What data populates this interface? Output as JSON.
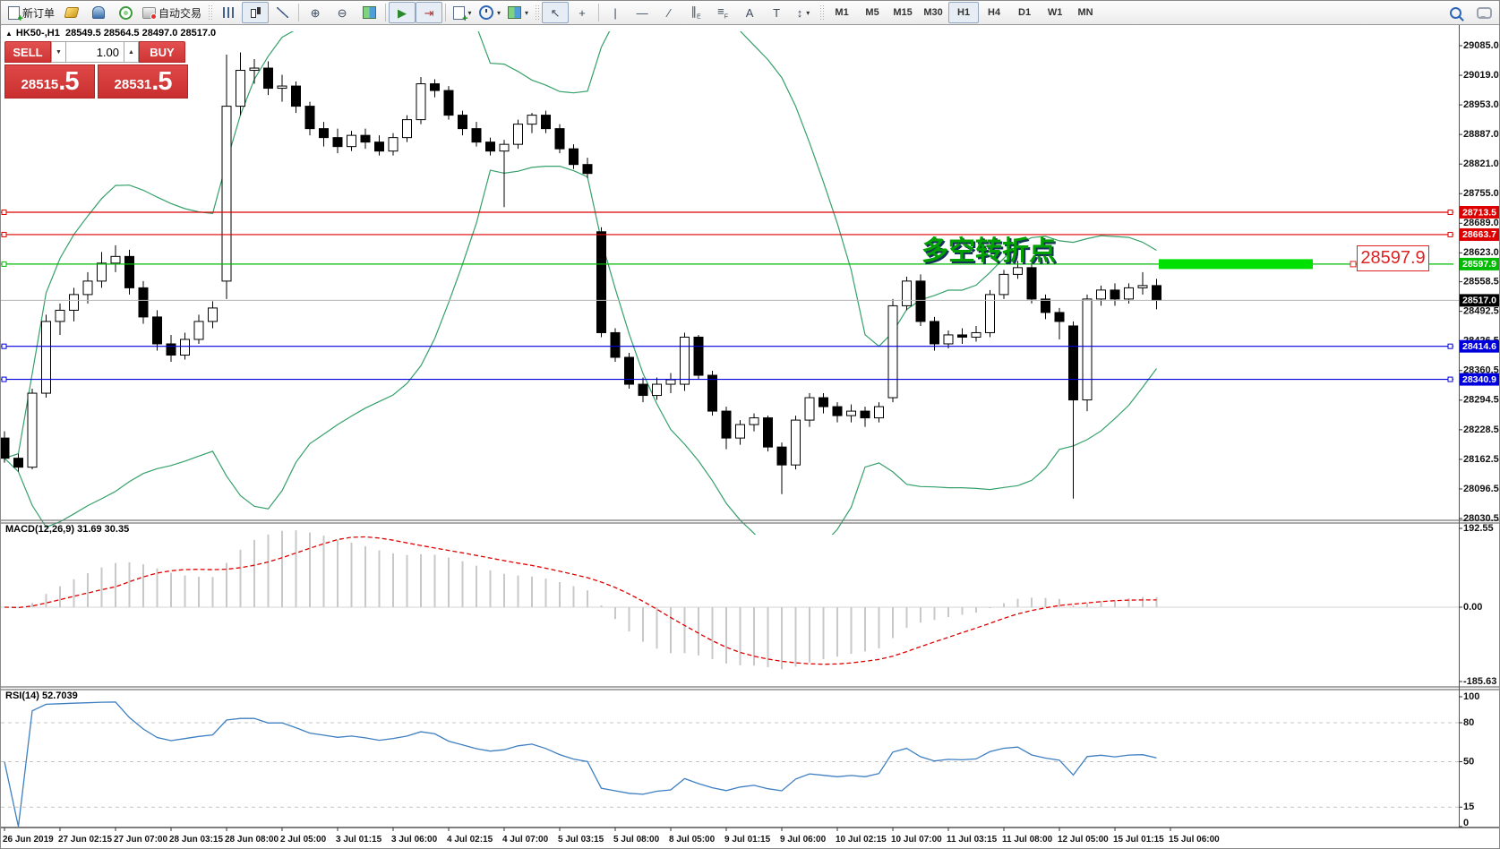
{
  "toolbar": {
    "new_order": "新订单",
    "auto_trading": "自动交易",
    "timeframes": [
      "M1",
      "M5",
      "M15",
      "M30",
      "H1",
      "H4",
      "D1",
      "W1",
      "MN"
    ],
    "active_timeframe": "H1"
  },
  "trade_panel": {
    "sell_label": "SELL",
    "buy_label": "BUY",
    "volume": "1.00",
    "sell_price_main": "28515",
    "sell_price_frac": ".5",
    "buy_price_main": "28531",
    "buy_price_frac": ".5"
  },
  "chart_header": {
    "collapse": "▲",
    "symbol": "HK50-,H1",
    "ohlc": "28549.5 28564.5 28497.0 28517.0"
  },
  "chart_data": {
    "type": "candlestick",
    "symbol": "HK50-",
    "timeframe": "H1",
    "last_ohlc": {
      "open": 28549.5,
      "high": 28564.5,
      "low": 28497.0,
      "close": 28517.0
    },
    "y_ticks": [
      "29085.0",
      "29019.0",
      "28953.0",
      "28887.0",
      "28821.0",
      "28755.0",
      "28689.0",
      "28623.0",
      "28558.5",
      "28492.5",
      "28426.5",
      "28360.5",
      "28294.5",
      "28228.5",
      "28162.5",
      "28096.5",
      "28030.5"
    ],
    "x_labels": [
      "26 Jun 2019",
      "27 Jun 02:15",
      "27 Jun 07:00",
      "28 Jun 03:15",
      "28 Jun 08:00",
      "2 Jul 05:00",
      "3 Jul 01:15",
      "3 Jul 06:00",
      "4 Jul 02:15",
      "4 Jul 07:00",
      "5 Jul 03:15",
      "5 Jul 08:00",
      "8 Jul 05:00",
      "9 Jul 01:15",
      "9 Jul 06:00",
      "10 Jul 02:15",
      "10 Jul 07:00",
      "11 Jul 03:15",
      "11 Jul 08:00",
      "12 Jul 05:00",
      "15 Jul 01:15",
      "15 Jul 06:00"
    ],
    "price_lines": [
      {
        "price": 28713.5,
        "label": "28713.5",
        "color": "#dd0000",
        "highlight": false
      },
      {
        "price": 28663.7,
        "label": "28663.7",
        "color": "#dd0000",
        "highlight": false
      },
      {
        "price": 28597.9,
        "label": "28597.9",
        "color": "#00bb00",
        "highlight": true
      },
      {
        "price": 28414.6,
        "label": "28414.6",
        "color": "#0000dd",
        "highlight": false
      },
      {
        "price": 28340.9,
        "label": "28340.9",
        "color": "#0000dd",
        "highlight": false
      }
    ],
    "highlight_bar_color": "#00e000",
    "current_price": {
      "value": 28517.0,
      "label": "28517.0",
      "line_color": "#b6b6b6",
      "tag_bg": "#000000"
    },
    "callout": {
      "text": "28597.9",
      "color": "#dd2222"
    },
    "annotation": {
      "text": "多空转折点",
      "color": "#00a000"
    },
    "bollinger": {
      "period": 20,
      "deviation": 2,
      "color": "#35a06a"
    },
    "macd": {
      "name": "MACD(12,26,9)",
      "values": "31.69 30.35",
      "fast": 12,
      "slow": 26,
      "signal": 9,
      "ticks": [
        {
          "v": 192.55,
          "label": "192.55"
        },
        {
          "v": 0,
          "label": "0.00"
        },
        {
          "v": -185.63,
          "label": "-185.63"
        }
      ],
      "max": 192.55,
      "min": -185.63,
      "bar_color": "#c8c8c8",
      "signal_color": "#dd0000"
    },
    "rsi": {
      "name": "RSI(14)",
      "value": "52.7039",
      "period": 14,
      "ticks": [
        {
          "v": 100,
          "label": "100"
        },
        {
          "v": 80,
          "label": "80"
        },
        {
          "v": 50,
          "label": "50"
        },
        {
          "v": 15,
          "label": "15"
        },
        {
          "v": 0,
          "label": "0"
        }
      ],
      "levels": [
        80,
        50,
        15
      ],
      "line_color": "#3e7fc1"
    },
    "candles": [
      [
        28210,
        28225,
        28155,
        28165
      ],
      [
        28165,
        28175,
        28135,
        28145
      ],
      [
        28145,
        28320,
        28140,
        28310
      ],
      [
        28310,
        28485,
        28300,
        28470
      ],
      [
        28470,
        28510,
        28440,
        28495
      ],
      [
        28495,
        28545,
        28470,
        28530
      ],
      [
        28530,
        28580,
        28510,
        28560
      ],
      [
        28560,
        28625,
        28545,
        28600
      ],
      [
        28600,
        28640,
        28580,
        28615
      ],
      [
        28615,
        28630,
        28530,
        28545
      ],
      [
        28545,
        28560,
        28465,
        28480
      ],
      [
        28480,
        28495,
        28405,
        28420
      ],
      [
        28420,
        28440,
        28380,
        28395
      ],
      [
        28395,
        28445,
        28385,
        28430
      ],
      [
        28430,
        28485,
        28420,
        28470
      ],
      [
        28470,
        28515,
        28455,
        28500
      ],
      [
        28560,
        29065,
        28520,
        28950
      ],
      [
        28950,
        29070,
        28930,
        29030
      ],
      [
        29030,
        29055,
        29000,
        29035
      ],
      [
        29035,
        29050,
        28975,
        28990
      ],
      [
        28990,
        29020,
        28960,
        28995
      ],
      [
        28995,
        29005,
        28935,
        28950
      ],
      [
        28950,
        28960,
        28885,
        28900
      ],
      [
        28900,
        28915,
        28860,
        28880
      ],
      [
        28880,
        28900,
        28845,
        28860
      ],
      [
        28860,
        28895,
        28850,
        28885
      ],
      [
        28885,
        28900,
        28855,
        28870
      ],
      [
        28870,
        28885,
        28840,
        28850
      ],
      [
        28850,
        28890,
        28840,
        28880
      ],
      [
        28880,
        28930,
        28870,
        28920
      ],
      [
        28920,
        29015,
        28910,
        29000
      ],
      [
        29000,
        29010,
        28970,
        28985
      ],
      [
        28985,
        28995,
        28920,
        28930
      ],
      [
        28930,
        28940,
        28885,
        28900
      ],
      [
        28900,
        28915,
        28860,
        28870
      ],
      [
        28870,
        28880,
        28840,
        28850
      ],
      [
        28850,
        28875,
        28725,
        28865
      ],
      [
        28865,
        28920,
        28855,
        28910
      ],
      [
        28910,
        28935,
        28890,
        28930
      ],
      [
        28930,
        28940,
        28890,
        28900
      ],
      [
        28900,
        28910,
        28845,
        28855
      ],
      [
        28855,
        28865,
        28810,
        28820
      ],
      [
        28820,
        28835,
        28790,
        28800
      ],
      [
        28670,
        28680,
        28435,
        28445
      ],
      [
        28445,
        28455,
        28380,
        28390
      ],
      [
        28390,
        28400,
        28320,
        28330
      ],
      [
        28330,
        28345,
        28290,
        28305
      ],
      [
        28305,
        28345,
        28295,
        28330
      ],
      [
        28330,
        28355,
        28310,
        28340
      ],
      [
        28330,
        28445,
        28315,
        28435
      ],
      [
        28435,
        28440,
        28340,
        28350
      ],
      [
        28350,
        28360,
        28260,
        28270
      ],
      [
        28270,
        28280,
        28185,
        28210
      ],
      [
        28210,
        28250,
        28195,
        28240
      ],
      [
        28240,
        28265,
        28225,
        28255
      ],
      [
        28255,
        28260,
        28180,
        28190
      ],
      [
        28190,
        28200,
        28085,
        28150
      ],
      [
        28150,
        28260,
        28140,
        28250
      ],
      [
        28250,
        28310,
        28235,
        28300
      ],
      [
        28300,
        28310,
        28265,
        28280
      ],
      [
        28280,
        28290,
        28245,
        28260
      ],
      [
        28260,
        28285,
        28245,
        28270
      ],
      [
        28270,
        28280,
        28235,
        28255
      ],
      [
        28255,
        28290,
        28245,
        28280
      ],
      [
        28300,
        28520,
        28290,
        28505
      ],
      [
        28505,
        28570,
        28495,
        28560
      ],
      [
        28560,
        28575,
        28460,
        28470
      ],
      [
        28470,
        28480,
        28405,
        28420
      ],
      [
        28420,
        28450,
        28410,
        28440
      ],
      [
        28440,
        28455,
        28420,
        28435
      ],
      [
        28435,
        28460,
        28425,
        28445
      ],
      [
        28445,
        28540,
        28435,
        28530
      ],
      [
        28530,
        28585,
        28520,
        28575
      ],
      [
        28575,
        28605,
        28565,
        28590
      ],
      [
        28590,
        28600,
        28510,
        28520
      ],
      [
        28520,
        28530,
        28475,
        28490
      ],
      [
        28490,
        28500,
        28430,
        28470
      ],
      [
        28460,
        28470,
        28075,
        28295
      ],
      [
        28295,
        28530,
        28270,
        28520
      ],
      [
        28520,
        28550,
        28505,
        28540
      ],
      [
        28540,
        28555,
        28505,
        28520
      ],
      [
        28520,
        28555,
        28510,
        28545
      ],
      [
        28545,
        28580,
        28530,
        28550
      ],
      [
        28550,
        28565,
        28497,
        28517
      ]
    ],
    "axis_range": {
      "top": 29085.0,
      "bottom": 28030.5
    },
    "grid": "off",
    "candle_up_fill": "#ffffff",
    "candle_down_fill": "#000000",
    "candle_border": "#000000"
  }
}
